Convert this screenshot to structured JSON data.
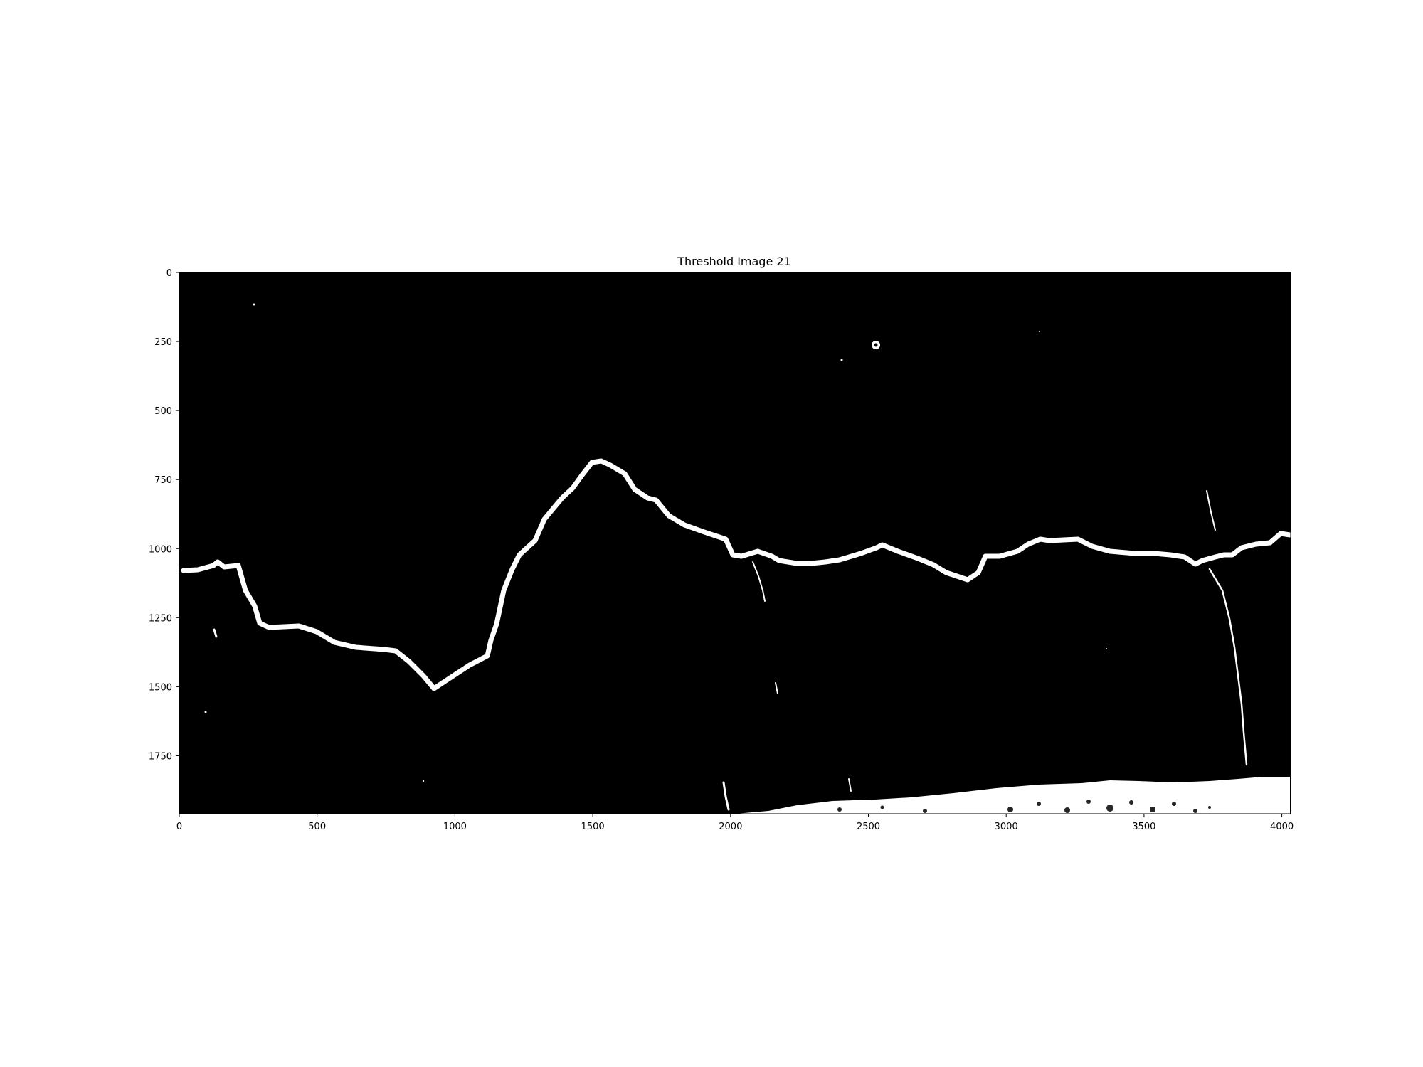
{
  "figure": {
    "title": "Threshold Image 21",
    "background_color": "#ffffff",
    "image_background_color": "#000000",
    "foreground_color": "#ffffff"
  },
  "image_extent": {
    "x_range": [
      0,
      4032
    ],
    "y_range": [
      0,
      1960
    ],
    "y_inverted": true
  },
  "axes": {
    "x_ticks": [
      0,
      500,
      1000,
      1500,
      2000,
      2500,
      3000,
      3500,
      4000
    ],
    "x_tick_labels": [
      "0",
      "500",
      "1000",
      "1500",
      "2000",
      "2500",
      "3000",
      "3500",
      "4000"
    ],
    "y_ticks": [
      0,
      250,
      500,
      750,
      1000,
      1250,
      1500,
      1750
    ],
    "y_tick_labels": [
      "0",
      "250",
      "500",
      "750",
      "1000",
      "1250",
      "1500",
      "1750"
    ]
  }
}
